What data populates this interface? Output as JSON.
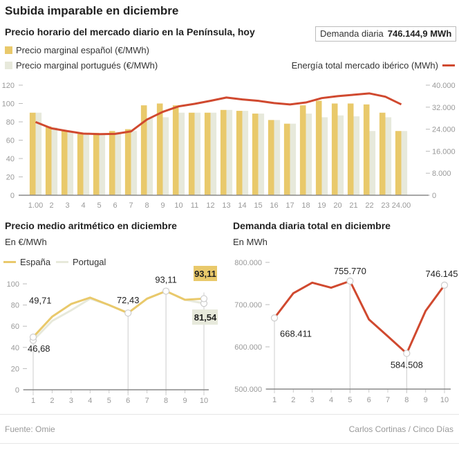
{
  "header": {
    "title": "Subida imparable en diciembre",
    "subtitle": "Precio horario del mercado diario en la Península, hoy",
    "demand_label": "Demanda diaria",
    "demand_value": "746.144,9 MWh"
  },
  "legend": {
    "es": "Precio marginal español (€/MWh)",
    "pt": "Precio marginal portugués (€/MWh)",
    "energy": "Energía total mercado ibérico (MWh)"
  },
  "colors": {
    "spain": "#e9c96b",
    "portugal": "#e7e9db",
    "energy": "#d0492f",
    "axis": "#888888",
    "tick_text": "#999999"
  },
  "left_chart": {
    "title": "Precio medio aritmético en diciembre",
    "unit": "En €/MWh",
    "legend_es": "España",
    "legend_pt": "Portugal",
    "badge_es": "93,11",
    "badge_pt": "81,54"
  },
  "right_chart": {
    "title": "Demanda diaria total en diciembre",
    "unit": "En MWh"
  },
  "footer": {
    "source": "Fuente: Omie",
    "credit": "Carlos Cortinas / Cinco Días"
  },
  "chart_data": [
    {
      "type": "bar",
      "title": "Precio horario del mercado diario en la Península, hoy",
      "categories": [
        "1.00",
        "2",
        "3",
        "4",
        "5",
        "6",
        "7",
        "8",
        "9",
        "10",
        "11",
        "12",
        "13",
        "14",
        "15",
        "16",
        "17",
        "18",
        "19",
        "20",
        "21",
        "22",
        "23",
        "24.00"
      ],
      "series": [
        {
          "name": "Precio marginal español (€/MWh)",
          "axis": "left",
          "values": [
            90,
            75,
            70,
            67,
            68,
            70,
            72,
            98,
            100,
            98,
            90,
            90,
            93,
            92,
            89,
            82,
            78,
            98,
            103,
            100,
            100,
            99,
            90,
            70
          ]
        },
        {
          "name": "Precio marginal portugués (€/MWh)",
          "axis": "left",
          "values": [
            90,
            74,
            69,
            67,
            66,
            69,
            70,
            84,
            85,
            90,
            90,
            90,
            93,
            92,
            89,
            82,
            78,
            89,
            85,
            87,
            86,
            70,
            85,
            70
          ]
        },
        {
          "name": "Energía total mercado ibérico (MWh)",
          "axis": "right",
          "type": "line",
          "values": [
            26600,
            24300,
            23300,
            22400,
            22200,
            22300,
            23200,
            27500,
            30300,
            32300,
            33200,
            34300,
            35500,
            34800,
            34300,
            33500,
            33000,
            33700,
            35300,
            36000,
            36500,
            37000,
            35800,
            33000
          ]
        }
      ],
      "ylim": [
        0,
        120
      ],
      "yticks": [
        0,
        20,
        40,
        60,
        80,
        100,
        120
      ],
      "y2lim": [
        0,
        40000
      ],
      "y2ticks": [
        "0",
        "8.000",
        "16.000",
        "24.000",
        "32.000",
        "40.000"
      ],
      "y2tick_values": [
        0,
        8000,
        16000,
        24000,
        32000,
        40000
      ],
      "legend": "top",
      "grid": false
    },
    {
      "type": "line",
      "title": "Precio medio aritmético en diciembre",
      "ylabel": "En €/MWh",
      "x": [
        1,
        2,
        3,
        4,
        5,
        6,
        7,
        8,
        9,
        10
      ],
      "series": [
        {
          "name": "España",
          "values": [
            49.71,
            69,
            81,
            87,
            80,
            72.43,
            86,
            93.11,
            85,
            86
          ]
        },
        {
          "name": "Portugal",
          "values": [
            46.68,
            65,
            75,
            86,
            80,
            72.43,
            86,
            93.11,
            85,
            81.54
          ]
        }
      ],
      "annotations": [
        {
          "x": 1,
          "label": "49,71",
          "series": "España"
        },
        {
          "x": 1,
          "label": "46,68",
          "series": "Portugal"
        },
        {
          "x": 6,
          "label": "72,43",
          "series": "España"
        },
        {
          "x": 8,
          "label": "93,11",
          "series": "España"
        }
      ],
      "ylim": [
        0,
        100
      ],
      "yticks": [
        0,
        20,
        40,
        60,
        80,
        100
      ],
      "legend": "top-left",
      "grid": false
    },
    {
      "type": "line",
      "title": "Demanda diaria total en diciembre",
      "ylabel": "En MWh",
      "x": [
        1,
        2,
        3,
        4,
        5,
        6,
        7,
        8,
        9,
        10
      ],
      "series": [
        {
          "name": "Demanda diaria",
          "values": [
            668411,
            727000,
            752000,
            740000,
            755770,
            665000,
            625000,
            584508,
            685000,
            746145
          ]
        }
      ],
      "annotations": [
        {
          "x": 1,
          "label": "668.411"
        },
        {
          "x": 5,
          "label": "755.770"
        },
        {
          "x": 8,
          "label": "584.508"
        },
        {
          "x": 10,
          "label": "746.145"
        }
      ],
      "ylim": [
        500000,
        800000
      ],
      "yticks": [
        "500.000",
        "600.000",
        "700.000",
        "800.000"
      ],
      "ytick_values": [
        500000,
        600000,
        700000,
        800000
      ],
      "grid": false
    }
  ]
}
